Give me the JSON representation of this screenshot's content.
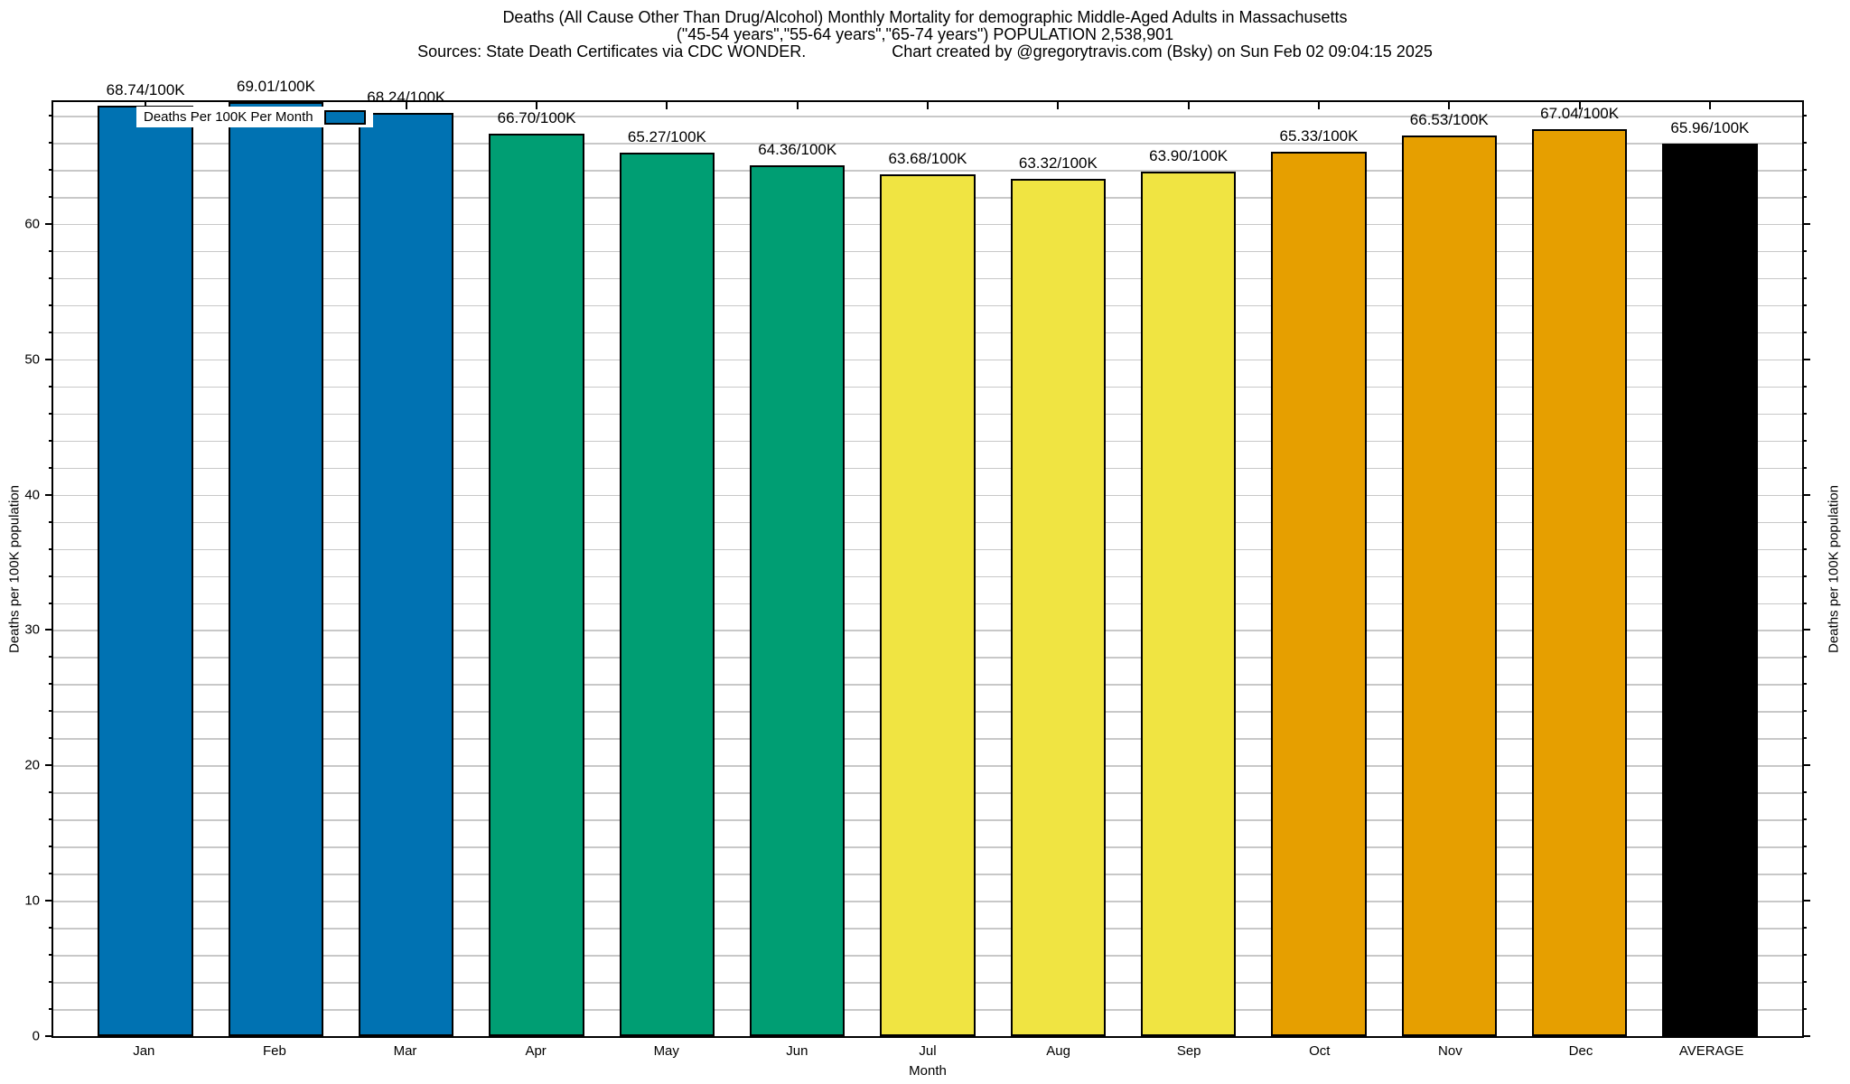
{
  "title": {
    "line1": "Deaths (All Cause Other Than Drug/Alcohol) Monthly Mortality for demographic Middle-Aged Adults in Massachusetts",
    "line2": "(\"45-54 years\",\"55-64 years\",\"65-74 years\") POPULATION 2,538,901",
    "line3_left": "Sources: State Death Certificates via CDC WONDER.",
    "line3_right": "Chart created by @gregorytravis.com (Bsky) on Sun Feb 02 09:04:15 2025"
  },
  "legend": {
    "label": "Deaths Per 100K Per Month",
    "swatch_color": "#0072B2"
  },
  "axes": {
    "y_left_label": "Deaths per 100K population",
    "y_right_label": "Deaths per 100K population",
    "x_label": "Month",
    "y_major_ticks": [
      0,
      10,
      20,
      30,
      40,
      50,
      60
    ],
    "y_minor_step": 2,
    "y_max": 69.01
  },
  "chart_data": {
    "type": "bar",
    "title": "Deaths (All Cause Other Than Drug/Alcohol) Monthly Mortality for demographic Middle-Aged Adults in Massachusetts (\"45-54 years\",\"55-64 years\",\"65-74 years\") POPULATION 2,538,901",
    "xlabel": "Month",
    "ylabel": "Deaths per 100K population",
    "ylim": [
      0,
      69.01
    ],
    "grid": "horizontal, light gray, every 2 units",
    "legend_position": "top-left inside plot",
    "categories": [
      "Jan",
      "Feb",
      "Mar",
      "Apr",
      "May",
      "Jun",
      "Jul",
      "Aug",
      "Sep",
      "Oct",
      "Nov",
      "Dec",
      "AVERAGE"
    ],
    "values": [
      68.74,
      69.01,
      68.24,
      66.7,
      65.27,
      64.36,
      63.68,
      63.32,
      63.9,
      65.33,
      66.53,
      67.04,
      65.96
    ],
    "bar_labels": [
      "68.74/100K",
      "69.01/100K",
      "68.24/100K",
      "66.70/100K",
      "65.27/100K",
      "64.36/100K",
      "63.68/100K",
      "63.32/100K",
      "63.90/100K",
      "65.33/100K",
      "66.53/100K",
      "67.04/100K",
      "65.96/100K"
    ],
    "colors": [
      "#0072B2",
      "#0072B2",
      "#0072B2",
      "#009E73",
      "#009E73",
      "#009E73",
      "#F0E442",
      "#F0E442",
      "#F0E442",
      "#E69F00",
      "#E69F00",
      "#E69F00",
      "#000000"
    ],
    "series_name": "Deaths Per 100K Per Month"
  }
}
